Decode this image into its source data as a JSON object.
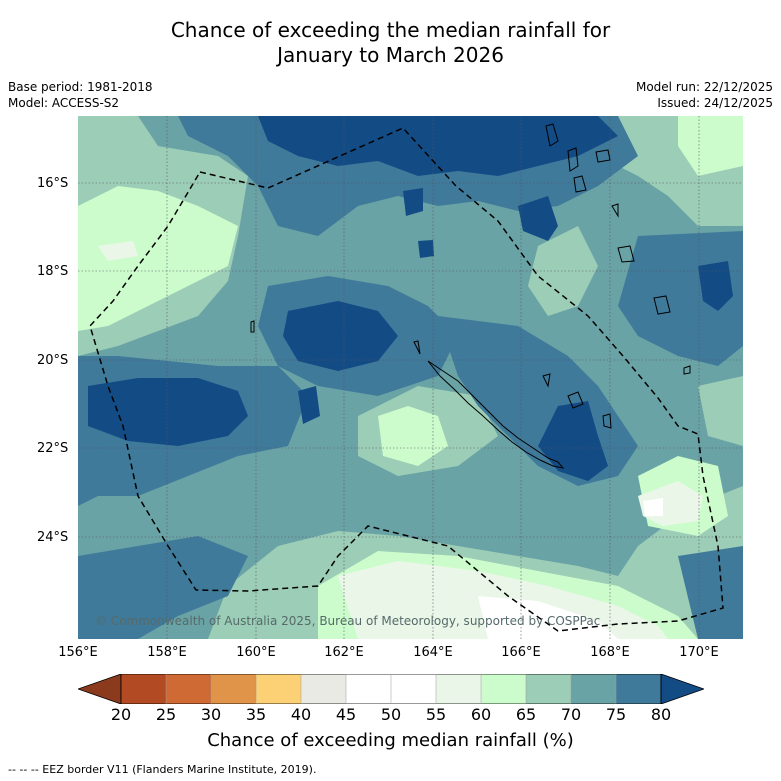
{
  "title": {
    "line1": "Chance of exceeding the median rainfall for",
    "line2": "January to March 2026"
  },
  "meta_left": {
    "base_period": "Base period: 1981-2018",
    "model": "Model: ACCESS-S2"
  },
  "meta_right": {
    "model_run": "Model run: 22/12/2025",
    "issued": "Issued: 24/12/2025"
  },
  "map": {
    "lon_range": [
      156,
      171
    ],
    "lat_range": [
      -26.3,
      -14.5
    ],
    "lat_labels": [
      "16°S",
      "18°S",
      "20°S",
      "22°S",
      "24°S"
    ],
    "lon_labels": [
      "156°E",
      "158°E",
      "160°E",
      "162°E",
      "164°E",
      "166°E",
      "168°E",
      "170°E"
    ],
    "copyright": "© Commonwealth of Australia 2025, Bureau of Meteorology, supported by COSPPac"
  },
  "colorbar": {
    "ticks": [
      "20",
      "25",
      "30",
      "35",
      "40",
      "45",
      "50",
      "55",
      "60",
      "65",
      "70",
      "75",
      "80"
    ],
    "colors": [
      "#8b3a1d",
      "#b24a23",
      "#cf6a35",
      "#e0944a",
      "#fcd176",
      "#eaeae5",
      "#ffffff",
      "#ffffff",
      "#eaf7e8",
      "#ccfccc",
      "#9ccdb6",
      "#6aa3a5",
      "#3f7a9a",
      "#134b85"
    ],
    "label": "Chance of exceeding median rainfall (%)"
  },
  "colors": {
    "band_60_65": "#ccfccc",
    "band_65_70": "#9ccdb6",
    "band_70_75": "#6aa3a5",
    "band_75_80": "#3f7a9a",
    "band_80": "#134b85",
    "band_55_60": "#eaf7e8"
  },
  "legend_note": "--  --  -- EEZ border V11 (Flanders Marine Institute, 2019)."
}
